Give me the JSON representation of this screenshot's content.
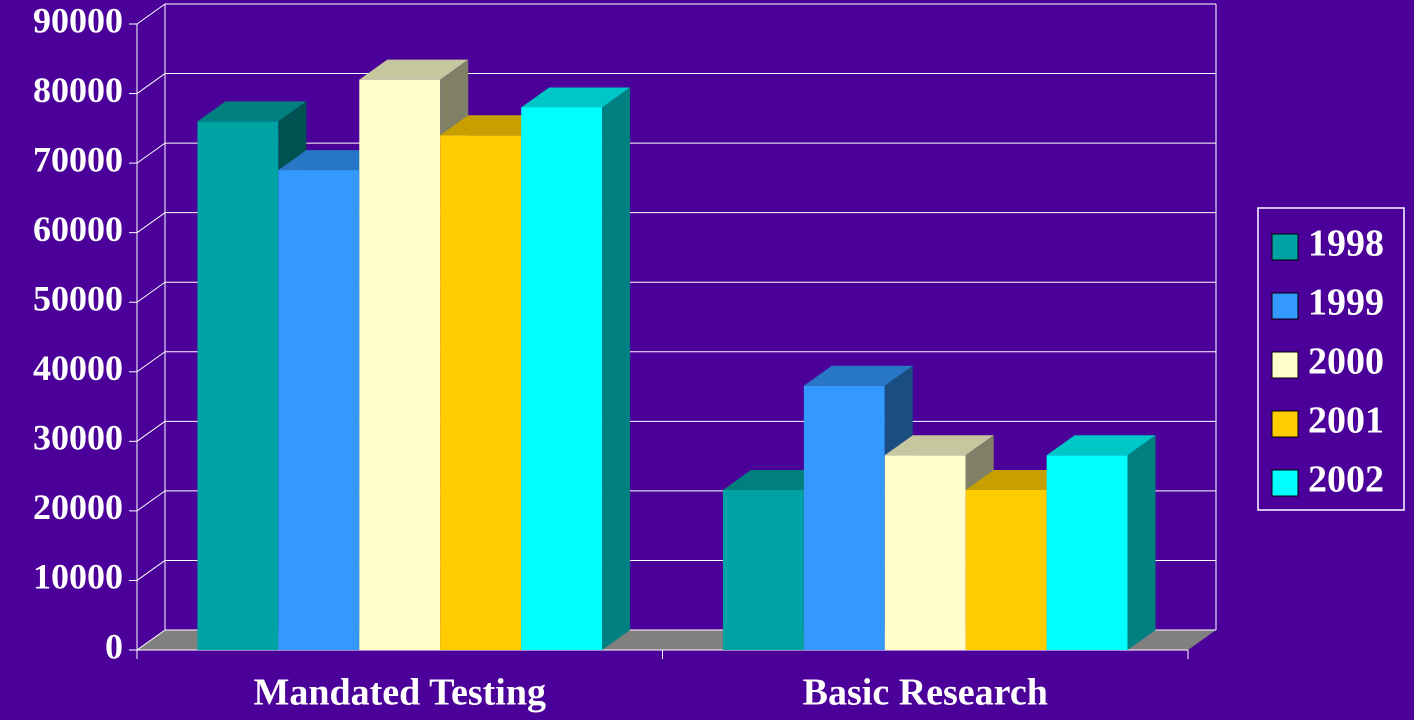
{
  "chart_data": {
    "type": "bar3d",
    "categories": [
      "Mandated Testing",
      "Basic Research"
    ],
    "series": [
      {
        "name": "1998",
        "color": "#00a3a3",
        "values": [
          76000,
          23000
        ]
      },
      {
        "name": "1999",
        "color": "#3399ff",
        "values": [
          69000,
          38000
        ]
      },
      {
        "name": "2000",
        "color": "#ffffcc",
        "values": [
          82000,
          28000
        ]
      },
      {
        "name": "2001",
        "color": "#ffcc00",
        "values": [
          74000,
          23000
        ]
      },
      {
        "name": "2002",
        "color": "#00ffff",
        "values": [
          78000,
          28000
        ]
      }
    ],
    "ylim": [
      0,
      90000
    ],
    "yticks": [
      0,
      10000,
      20000,
      30000,
      40000,
      50000,
      60000,
      70000,
      80000,
      90000
    ],
    "grid": true,
    "legend": "right"
  }
}
